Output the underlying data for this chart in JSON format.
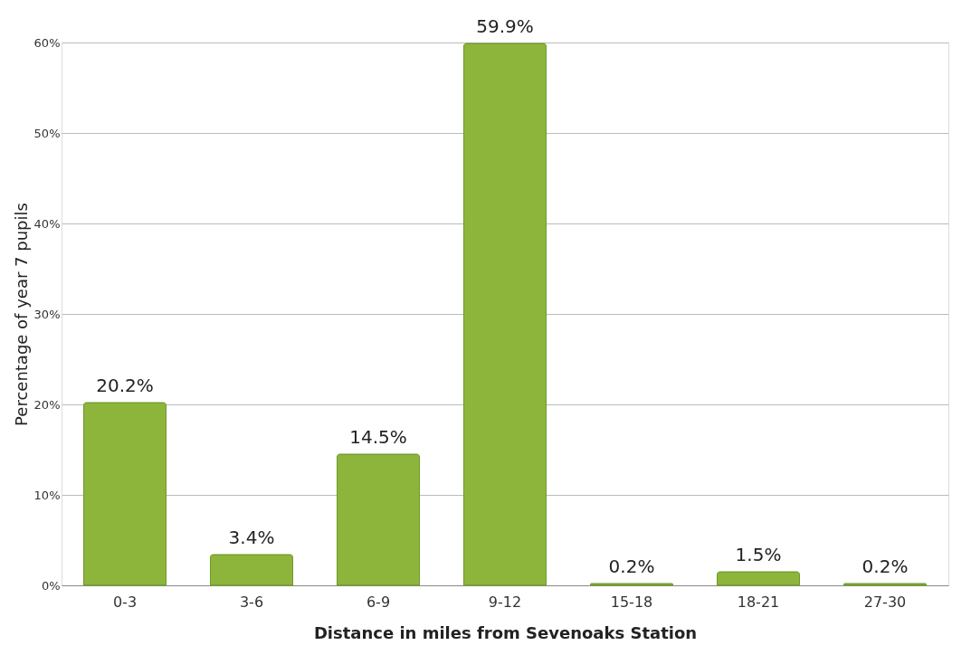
{
  "chart_data": {
    "type": "bar",
    "xlabel": "Distance in miles from Sevenoaks Station",
    "ylabel": "Percentage of year 7 pupils",
    "categories": [
      "0-3",
      "3-6",
      "6-9",
      "9-12",
      "15-18",
      "18-21",
      "27-30"
    ],
    "values": [
      20.2,
      3.4,
      14.5,
      59.9,
      0.2,
      1.5,
      0.2
    ],
    "value_labels": [
      "20.2%",
      "3.4%",
      "14.5%",
      "59.9%",
      "0.2%",
      "1.5%",
      "0.2%"
    ],
    "color": "#8db53c",
    "ylim": [
      0,
      60
    ],
    "yticks": [
      {
        "value": 0,
        "label": "0%"
      },
      {
        "value": 10,
        "label": "10%"
      },
      {
        "value": 20,
        "label": "20%"
      },
      {
        "value": 30,
        "label": "30%"
      },
      {
        "value": 40,
        "label": "40%"
      },
      {
        "value": 50,
        "label": "50%"
      },
      {
        "value": 60,
        "label": "60%"
      }
    ],
    "grid": "y"
  }
}
